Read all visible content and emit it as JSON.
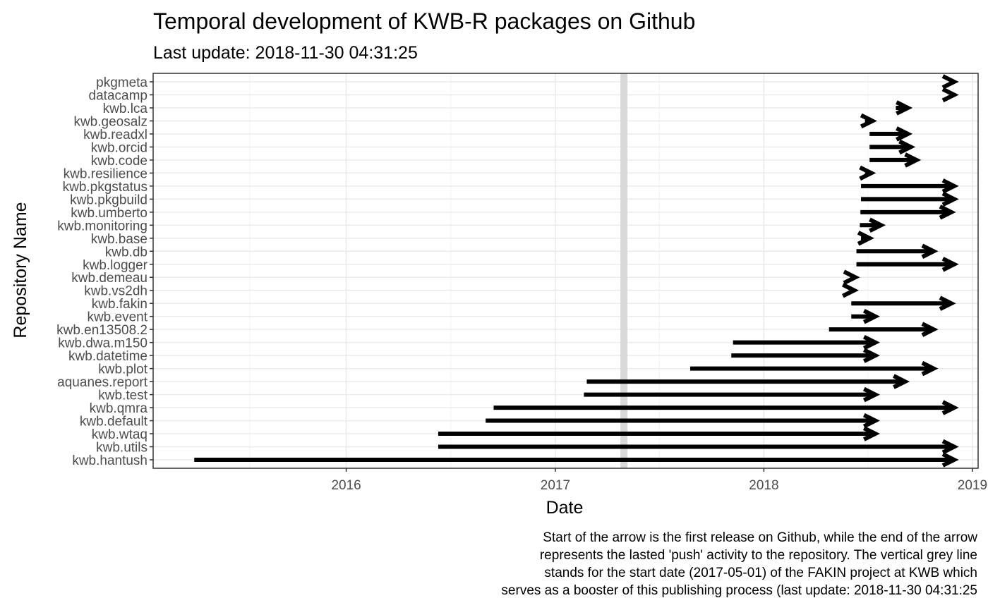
{
  "chart_data": {
    "type": "arrow-range",
    "title": "Temporal development of KWB-R packages on Github",
    "subtitle": "Last update: 2018-11-30 04:31:25",
    "xlabel": "Date",
    "ylabel": "Repository Name",
    "xlim": [
      "2015-01-28",
      "2019-01-11"
    ],
    "x_ticks": [
      "2016-01-01",
      "2017-01-01",
      "2018-01-01",
      "2019-01-01"
    ],
    "x_tick_labels": [
      "2016",
      "2017",
      "2018",
      "2019"
    ],
    "reference_line": {
      "date": "2017-05-01"
    },
    "grid": true,
    "colors": {
      "arrow": "#000000",
      "reference_line": "#d9d9d9",
      "grid_major": "#ebebeb",
      "grid_minor": "#f2f2f2",
      "panel_border": "#333333",
      "tick_text": "#4d4d4d"
    },
    "series": [
      {
        "name": "pkgmeta",
        "start": "2018-11-25",
        "end": "2018-11-30"
      },
      {
        "name": "datacamp",
        "start": "2018-11-25",
        "end": "2018-11-30"
      },
      {
        "name": "kwb.lca",
        "start": "2018-08-20",
        "end": "2018-09-10"
      },
      {
        "name": "kwb.geosalz",
        "start": "2018-06-27",
        "end": "2018-07-10"
      },
      {
        "name": "kwb.readxl",
        "start": "2018-07-05",
        "end": "2018-09-10"
      },
      {
        "name": "kwb.orcid",
        "start": "2018-07-05",
        "end": "2018-09-15"
      },
      {
        "name": "kwb.code",
        "start": "2018-07-05",
        "end": "2018-09-25"
      },
      {
        "name": "kwb.resilience",
        "start": "2018-06-27",
        "end": "2018-07-08"
      },
      {
        "name": "kwb.pkgstatus",
        "start": "2018-06-20",
        "end": "2018-11-30"
      },
      {
        "name": "kwb.pkgbuild",
        "start": "2018-06-20",
        "end": "2018-11-30"
      },
      {
        "name": "kwb.umberto",
        "start": "2018-06-19",
        "end": "2018-11-25"
      },
      {
        "name": "kwb.monitoring",
        "start": "2018-06-18",
        "end": "2018-07-25"
      },
      {
        "name": "kwb.base",
        "start": "2018-06-20",
        "end": "2018-07-05"
      },
      {
        "name": "kwb.db",
        "start": "2018-06-12",
        "end": "2018-10-25"
      },
      {
        "name": "kwb.logger",
        "start": "2018-06-12",
        "end": "2018-11-30"
      },
      {
        "name": "kwb.demeau",
        "start": "2018-06-01",
        "end": "2018-06-10"
      },
      {
        "name": "kwb.vs2dh",
        "start": "2018-05-31",
        "end": "2018-06-08"
      },
      {
        "name": "kwb.fakin",
        "start": "2018-06-03",
        "end": "2018-11-25"
      },
      {
        "name": "kwb.event",
        "start": "2018-06-03",
        "end": "2018-07-15"
      },
      {
        "name": "kwb.en13508.2",
        "start": "2018-04-25",
        "end": "2018-10-25"
      },
      {
        "name": "kwb.dwa.m150",
        "start": "2017-11-08",
        "end": "2018-07-15"
      },
      {
        "name": "kwb.datetime",
        "start": "2017-11-05",
        "end": "2018-07-15"
      },
      {
        "name": "kwb.plot",
        "start": "2017-08-25",
        "end": "2018-10-25"
      },
      {
        "name": "aquanes.report",
        "start": "2017-02-25",
        "end": "2018-09-05"
      },
      {
        "name": "kwb.test",
        "start": "2017-02-20",
        "end": "2018-07-15"
      },
      {
        "name": "kwb.qmra",
        "start": "2016-09-15",
        "end": "2018-11-30"
      },
      {
        "name": "kwb.default",
        "start": "2016-09-01",
        "end": "2018-07-15"
      },
      {
        "name": "kwb.wtaq",
        "start": "2016-06-10",
        "end": "2018-07-15"
      },
      {
        "name": "kwb.utils",
        "start": "2016-06-10",
        "end": "2018-11-30"
      },
      {
        "name": "kwb.hantush",
        "start": "2015-04-10",
        "end": "2018-11-30"
      }
    ],
    "caption": [
      "Start of the arrow is the first release on Github, while the end of the arrow",
      "represents the lasted 'push' activity to the repository. The vertical grey line",
      "stands for the start date (2017-05-01) of the FAKIN project at KWB which",
      "serves as a booster of this publishing process (last update: 2018-11-30 04:31:25"
    ]
  }
}
